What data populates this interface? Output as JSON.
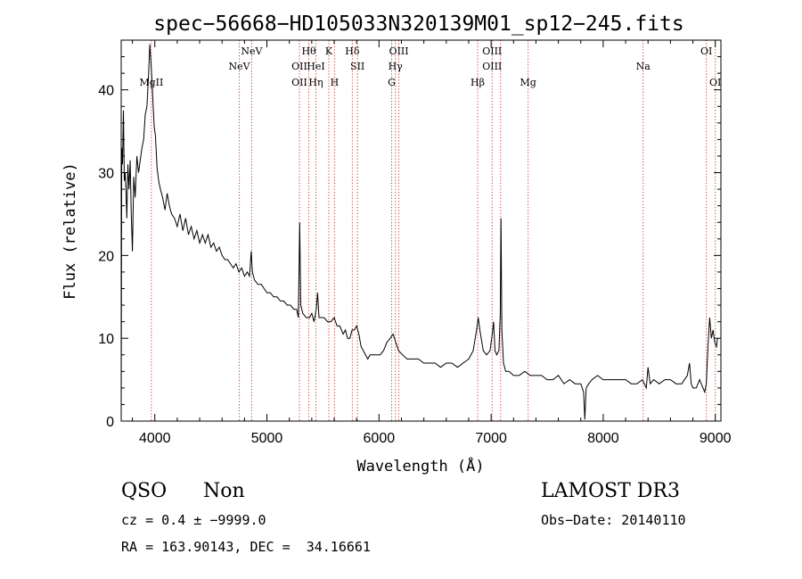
{
  "chart_data": {
    "type": "line",
    "title": "spec−56668−HD105033N320139M01_sp12−245.fits",
    "xlabel": "Wavelength (Å)",
    "ylabel": "Flux (relative)",
    "xlim": [
      3700,
      9050
    ],
    "ylim": [
      0,
      46
    ],
    "xticks": [
      4000,
      5000,
      6000,
      7000,
      8000,
      9000
    ],
    "yticks": [
      0,
      10,
      20,
      30,
      40
    ],
    "grid": false,
    "series": [
      {
        "color": "#000000",
        "points": [
          [
            3700,
            0.5
          ],
          [
            3705,
            33
          ],
          [
            3712,
            31
          ],
          [
            3720,
            37.5
          ],
          [
            3728,
            29
          ],
          [
            3735,
            30
          ],
          [
            3742,
            28
          ],
          [
            3750,
            24.5
          ],
          [
            3760,
            31
          ],
          [
            3770,
            28
          ],
          [
            3780,
            31.5
          ],
          [
            3790,
            25
          ],
          [
            3800,
            20.5
          ],
          [
            3812,
            29.5
          ],
          [
            3825,
            27
          ],
          [
            3840,
            32
          ],
          [
            3855,
            30
          ],
          [
            3870,
            31.5
          ],
          [
            3885,
            33
          ],
          [
            3900,
            34
          ],
          [
            3915,
            37
          ],
          [
            3930,
            38
          ],
          [
            3945,
            42
          ],
          [
            3955,
            45.5
          ],
          [
            3965,
            43.5
          ],
          [
            3975,
            41
          ],
          [
            3985,
            38
          ],
          [
            3995,
            35.5
          ],
          [
            4005,
            34.5
          ],
          [
            4020,
            30.5
          ],
          [
            4035,
            29
          ],
          [
            4050,
            28
          ],
          [
            4070,
            27
          ],
          [
            4090,
            25.5
          ],
          [
            4110,
            27.5
          ],
          [
            4130,
            26
          ],
          [
            4150,
            25
          ],
          [
            4175,
            24.5
          ],
          [
            4200,
            23.5
          ],
          [
            4225,
            25
          ],
          [
            4250,
            23
          ],
          [
            4275,
            24.5
          ],
          [
            4300,
            22.5
          ],
          [
            4325,
            23.5
          ],
          [
            4350,
            22
          ],
          [
            4375,
            23
          ],
          [
            4400,
            21.5
          ],
          [
            4425,
            22.5
          ],
          [
            4450,
            21.5
          ],
          [
            4475,
            22.5
          ],
          [
            4500,
            21
          ],
          [
            4525,
            21.5
          ],
          [
            4550,
            20.5
          ],
          [
            4575,
            21
          ],
          [
            4600,
            20
          ],
          [
            4625,
            19.5
          ],
          [
            4650,
            19.5
          ],
          [
            4675,
            19
          ],
          [
            4700,
            18.5
          ],
          [
            4725,
            19
          ],
          [
            4750,
            18
          ],
          [
            4775,
            18.5
          ],
          [
            4800,
            17.5
          ],
          [
            4825,
            18
          ],
          [
            4845,
            17.5
          ],
          [
            4860,
            20.5
          ],
          [
            4870,
            18
          ],
          [
            4890,
            17
          ],
          [
            4920,
            16.5
          ],
          [
            4950,
            16.5
          ],
          [
            4975,
            16
          ],
          [
            5000,
            15.5
          ],
          [
            5030,
            15.5
          ],
          [
            5060,
            15
          ],
          [
            5090,
            15
          ],
          [
            5120,
            14.5
          ],
          [
            5150,
            14.5
          ],
          [
            5180,
            14
          ],
          [
            5210,
            14
          ],
          [
            5240,
            13.5
          ],
          [
            5265,
            13.5
          ],
          [
            5280,
            12.5
          ],
          [
            5292,
            24
          ],
          [
            5302,
            14
          ],
          [
            5320,
            13
          ],
          [
            5350,
            12.5
          ],
          [
            5380,
            12.5
          ],
          [
            5400,
            13
          ],
          [
            5420,
            12
          ],
          [
            5440,
            13.5
          ],
          [
            5452,
            15.5
          ],
          [
            5465,
            12.5
          ],
          [
            5485,
            12.5
          ],
          [
            5510,
            12.5
          ],
          [
            5540,
            12
          ],
          [
            5570,
            12
          ],
          [
            5600,
            12.5
          ],
          [
            5625,
            11.5
          ],
          [
            5650,
            11.5
          ],
          [
            5680,
            10.5
          ],
          [
            5700,
            11
          ],
          [
            5720,
            10
          ],
          [
            5740,
            10
          ],
          [
            5760,
            11
          ],
          [
            5780,
            11
          ],
          [
            5800,
            11.5
          ],
          [
            5820,
            10.5
          ],
          [
            5840,
            9
          ],
          [
            5860,
            8.5
          ],
          [
            5880,
            8
          ],
          [
            5900,
            7.5
          ],
          [
            5920,
            8
          ],
          [
            5950,
            8
          ],
          [
            5980,
            8
          ],
          [
            6010,
            8
          ],
          [
            6040,
            8.5
          ],
          [
            6070,
            9.5
          ],
          [
            6100,
            10
          ],
          [
            6125,
            10.5
          ],
          [
            6150,
            9.5
          ],
          [
            6175,
            8.5
          ],
          [
            6210,
            8
          ],
          [
            6250,
            7.5
          ],
          [
            6300,
            7.5
          ],
          [
            6350,
            7.5
          ],
          [
            6400,
            7
          ],
          [
            6450,
            7
          ],
          [
            6500,
            7
          ],
          [
            6550,
            6.5
          ],
          [
            6600,
            7
          ],
          [
            6650,
            7
          ],
          [
            6700,
            6.5
          ],
          [
            6750,
            7
          ],
          [
            6800,
            7.5
          ],
          [
            6840,
            8.5
          ],
          [
            6870,
            11
          ],
          [
            6885,
            12.5
          ],
          [
            6900,
            11
          ],
          [
            6930,
            8.5
          ],
          [
            6960,
            8
          ],
          [
            6990,
            8.5
          ],
          [
            7010,
            10.5
          ],
          [
            7022,
            12
          ],
          [
            7035,
            8.5
          ],
          [
            7050,
            8
          ],
          [
            7070,
            8.5
          ],
          [
            7082,
            13
          ],
          [
            7088,
            24.5
          ],
          [
            7096,
            11
          ],
          [
            7110,
            7
          ],
          [
            7130,
            6
          ],
          [
            7160,
            6
          ],
          [
            7200,
            5.5
          ],
          [
            7250,
            5.5
          ],
          [
            7300,
            6
          ],
          [
            7350,
            5.5
          ],
          [
            7400,
            5.5
          ],
          [
            7450,
            5.5
          ],
          [
            7500,
            5
          ],
          [
            7550,
            5
          ],
          [
            7600,
            5.5
          ],
          [
            7650,
            4.5
          ],
          [
            7700,
            5
          ],
          [
            7750,
            4.5
          ],
          [
            7800,
            4.5
          ],
          [
            7825,
            3.5
          ],
          [
            7836,
            0.2
          ],
          [
            7848,
            4
          ],
          [
            7870,
            4.5
          ],
          [
            7900,
            5
          ],
          [
            7950,
            5.5
          ],
          [
            8000,
            5
          ],
          [
            8050,
            5
          ],
          [
            8100,
            5
          ],
          [
            8150,
            5
          ],
          [
            8200,
            5
          ],
          [
            8250,
            4.5
          ],
          [
            8300,
            4.5
          ],
          [
            8350,
            5
          ],
          [
            8385,
            4
          ],
          [
            8400,
            6.5
          ],
          [
            8420,
            4.5
          ],
          [
            8450,
            5
          ],
          [
            8500,
            4.5
          ],
          [
            8550,
            5
          ],
          [
            8600,
            5
          ],
          [
            8650,
            4.5
          ],
          [
            8700,
            4.5
          ],
          [
            8750,
            5.5
          ],
          [
            8770,
            7
          ],
          [
            8785,
            4.5
          ],
          [
            8800,
            4
          ],
          [
            8830,
            4
          ],
          [
            8860,
            5
          ],
          [
            8890,
            4
          ],
          [
            8905,
            3.5
          ],
          [
            8920,
            4.5
          ],
          [
            8935,
            9
          ],
          [
            8950,
            12.5
          ],
          [
            8965,
            10
          ],
          [
            8980,
            11
          ],
          [
            8995,
            9.5
          ],
          [
            9010,
            9
          ],
          [
            9020,
            10
          ]
        ]
      }
    ],
    "lines": [
      {
        "x": 3969,
        "labels": [
          "MgII"
        ]
      },
      {
        "x": 4754,
        "labels": [
          "NeV"
        ]
      },
      {
        "x": 4864,
        "labels": [
          "NeV"
        ]
      },
      {
        "x": 5290,
        "labels": [
          "OII",
          "OII"
        ]
      },
      {
        "x": 5374,
        "labels": [
          "Hθ"
        ]
      },
      {
        "x": 5437,
        "labels": [
          "Hη",
          "HeI"
        ]
      },
      {
        "x": 5552,
        "labels": [
          "K"
        ]
      },
      {
        "x": 5603,
        "labels": [
          "H"
        ]
      },
      {
        "x": 5762,
        "labels": [
          "Hδ"
        ]
      },
      {
        "x": 5808,
        "labels": [
          "SII"
        ]
      },
      {
        "x": 6113,
        "labels": [
          "G"
        ]
      },
      {
        "x": 6146,
        "labels": [
          "Hγ"
        ]
      },
      {
        "x": 6177,
        "labels": [
          "OIII"
        ]
      },
      {
        "x": 6880,
        "labels": [
          "Hβ"
        ]
      },
      {
        "x": 7009,
        "labels": [
          "OIII",
          "OIII"
        ]
      },
      {
        "x": 7085,
        "labels": [
          "OIII"
        ]
      },
      {
        "x": 7330,
        "labels": [
          "Mg"
        ]
      },
      {
        "x": 8356,
        "labels": [
          "Na"
        ]
      },
      {
        "x": 8920,
        "labels": [
          "OI"
        ]
      },
      {
        "x": 9000,
        "labels": [
          "OI"
        ]
      }
    ],
    "line_labels": [
      {
        "text": "MgII",
        "x": 3969,
        "row": 2
      },
      {
        "text": "NeV",
        "x": 4754,
        "row": 1
      },
      {
        "text": "NeV",
        "x": 4864,
        "row": 0
      },
      {
        "text": "OII",
        "x": 5290,
        "row": 1
      },
      {
        "text": "OII",
        "x": 5290,
        "row": 2
      },
      {
        "text": "Hθ",
        "x": 5374,
        "row": 0
      },
      {
        "text": "HeI",
        "x": 5437,
        "row": 1
      },
      {
        "text": "Hη",
        "x": 5437,
        "row": 2
      },
      {
        "text": "K",
        "x": 5552,
        "row": 0
      },
      {
        "text": "H",
        "x": 5603,
        "row": 2
      },
      {
        "text": "Hδ",
        "x": 5762,
        "row": 0
      },
      {
        "text": "SII",
        "x": 5808,
        "row": 1
      },
      {
        "text": "OIII",
        "x": 6177,
        "row": 0
      },
      {
        "text": "Hγ",
        "x": 6146,
        "row": 1
      },
      {
        "text": "G",
        "x": 6113,
        "row": 2
      },
      {
        "text": "Hβ",
        "x": 6880,
        "row": 2
      },
      {
        "text": "OIII",
        "x": 7009,
        "row": 0
      },
      {
        "text": "OIII",
        "x": 7009,
        "row": 1
      },
      {
        "text": "Mg",
        "x": 7330,
        "row": 2
      },
      {
        "text": "Na",
        "x": 8356,
        "row": 1
      },
      {
        "text": "OI",
        "x": 8920,
        "row": 0
      },
      {
        "text": "OI",
        "x": 9000,
        "row": 2
      }
    ],
    "line_color": "#cc3333"
  },
  "info": {
    "class": "QSO",
    "subclass": "Non",
    "survey": "LAMOST DR3",
    "cz": "cz = 0.4 ± −9999.0",
    "obs_date": "Obs−Date: 20140110",
    "radec": "RA = 163.90143, DEC =  34.16661"
  }
}
